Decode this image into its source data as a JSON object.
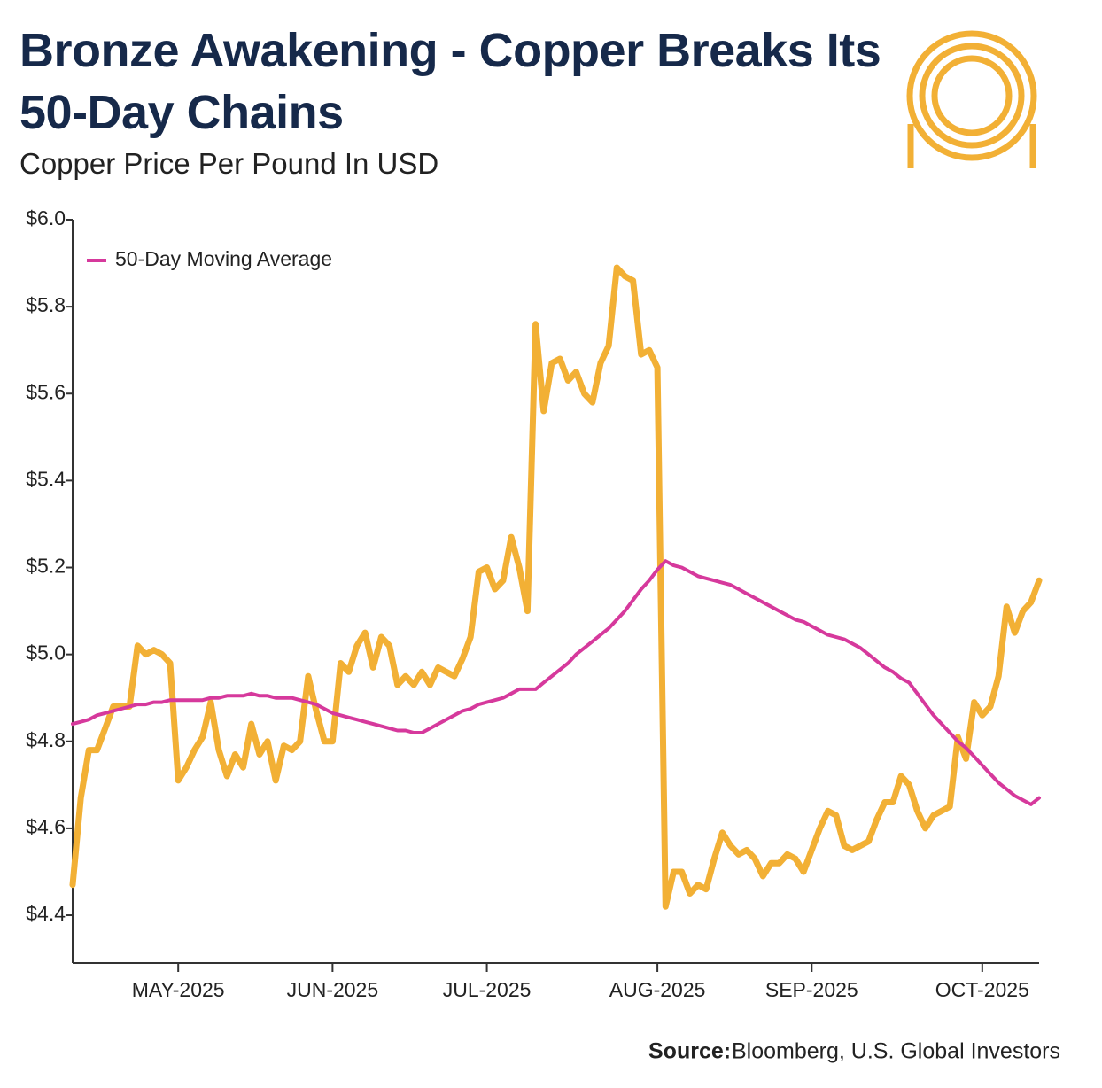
{
  "chart_data": {
    "type": "line",
    "title": "Bronze Awakening - Copper Breaks Its 50-Day Chains",
    "subtitle": "Copper Price Per Pound In USD",
    "source_label": "Source:",
    "source": "Bloomberg, U.S. Global Investors",
    "legend": "upper left",
    "categories": [
      null,
      null,
      null,
      null,
      null,
      null,
      null,
      null,
      null,
      null,
      null,
      null,
      null,
      "MAY-2025",
      null,
      null,
      null,
      null,
      null,
      null,
      null,
      null,
      null,
      null,
      null,
      null,
      null,
      null,
      null,
      null,
      null,
      null,
      "JUN-2025",
      null,
      null,
      null,
      null,
      null,
      null,
      null,
      null,
      null,
      null,
      null,
      null,
      null,
      null,
      null,
      null,
      null,
      null,
      "JUL-2025",
      null,
      null,
      null,
      null,
      null,
      null,
      null,
      null,
      null,
      null,
      null,
      null,
      null,
      null,
      null,
      null,
      null,
      null,
      null,
      null,
      "AUG-2025",
      null,
      null,
      null,
      null,
      null,
      null,
      null,
      null,
      null,
      null,
      null,
      null,
      null,
      null,
      null,
      null,
      null,
      null,
      "SEP-2025",
      null,
      null,
      null,
      null,
      null,
      null,
      null,
      null,
      null,
      null,
      null,
      null,
      null,
      null,
      null,
      null,
      null,
      null,
      null,
      null,
      "OCT-2025",
      null,
      null,
      null,
      null,
      null,
      null,
      null
    ],
    "series": [
      {
        "color": "#f2b035",
        "values": [
          4.47,
          4.67,
          4.78,
          4.78,
          4.83,
          4.88,
          4.88,
          4.88,
          5.02,
          5.0,
          5.01,
          5.0,
          4.98,
          4.71,
          4.74,
          4.78,
          4.81,
          4.89,
          4.78,
          4.72,
          4.77,
          4.74,
          4.84,
          4.77,
          4.8,
          4.71,
          4.79,
          4.78,
          4.8,
          4.95,
          4.87,
          4.8,
          4.8,
          4.98,
          4.96,
          5.02,
          5.05,
          4.97,
          5.04,
          5.02,
          4.93,
          4.95,
          4.93,
          4.96,
          4.93,
          4.97,
          4.96,
          4.95,
          4.99,
          5.04,
          5.19,
          5.2,
          5.15,
          5.17,
          5.27,
          5.2,
          5.1,
          5.76,
          5.56,
          5.67,
          5.68,
          5.63,
          5.65,
          5.6,
          5.58,
          5.67,
          5.71,
          5.89,
          5.87,
          5.86,
          5.69,
          5.7,
          5.66,
          4.42,
          4.5,
          4.5,
          4.45,
          4.47,
          4.46,
          4.53,
          4.59,
          4.56,
          4.54,
          4.55,
          4.53,
          4.49,
          4.52,
          4.52,
          4.54,
          4.53,
          4.5,
          4.55,
          4.6,
          4.64,
          4.63,
          4.56,
          4.55,
          4.56,
          4.57,
          4.62,
          4.66,
          4.66,
          4.72,
          4.7,
          4.64,
          4.6,
          4.63,
          4.64,
          4.65,
          4.81,
          4.76,
          4.89,
          4.86,
          4.88,
          4.95,
          5.11,
          5.05,
          5.1,
          5.12,
          5.17
        ]
      },
      {
        "name": "50-Day Moving Average",
        "color": "#d6399c",
        "values": [
          4.84,
          4.845,
          4.85,
          4.86,
          4.865,
          4.87,
          4.875,
          4.88,
          4.885,
          4.885,
          4.89,
          4.89,
          4.895,
          4.895,
          4.895,
          4.895,
          4.895,
          4.9,
          4.9,
          4.905,
          4.905,
          4.905,
          4.91,
          4.905,
          4.905,
          4.9,
          4.9,
          4.9,
          4.895,
          4.89,
          4.885,
          4.875,
          4.865,
          4.86,
          4.855,
          4.85,
          4.845,
          4.84,
          4.835,
          4.83,
          4.825,
          4.825,
          4.82,
          4.82,
          4.83,
          4.84,
          4.85,
          4.86,
          4.87,
          4.875,
          4.885,
          4.89,
          4.895,
          4.9,
          4.91,
          4.92,
          4.92,
          4.92,
          4.935,
          4.95,
          4.965,
          4.98,
          5.0,
          5.015,
          5.03,
          5.045,
          5.06,
          5.08,
          5.1,
          5.125,
          5.15,
          5.17,
          5.195,
          5.215,
          5.205,
          5.2,
          5.19,
          5.18,
          5.175,
          5.17,
          5.165,
          5.16,
          5.15,
          5.14,
          5.13,
          5.12,
          5.11,
          5.1,
          5.09,
          5.08,
          5.075,
          5.065,
          5.055,
          5.045,
          5.04,
          5.035,
          5.025,
          5.015,
          5.0,
          4.985,
          4.97,
          4.96,
          4.945,
          4.935,
          4.91,
          4.885,
          4.86,
          4.84,
          4.82,
          4.8,
          4.785,
          4.765,
          4.745,
          4.725,
          4.705,
          4.69,
          4.675,
          4.665,
          4.655,
          4.67
        ]
      }
    ],
    "ylim": [
      4.29,
      6.0
    ],
    "yticks": [
      {
        "value": 4.4,
        "label": "$4.4"
      },
      {
        "value": 4.6,
        "label": "$4.6"
      },
      {
        "value": 4.8,
        "label": "$4.8"
      },
      {
        "value": 5.0,
        "label": "$5.0"
      },
      {
        "value": 5.2,
        "label": "$5.2"
      },
      {
        "value": 5.4,
        "label": "$5.4"
      },
      {
        "value": 5.6,
        "label": "$5.6"
      },
      {
        "value": 5.8,
        "label": "$5.8"
      },
      {
        "value": 6.0,
        "label": "$6.0"
      }
    ],
    "grid": false
  }
}
